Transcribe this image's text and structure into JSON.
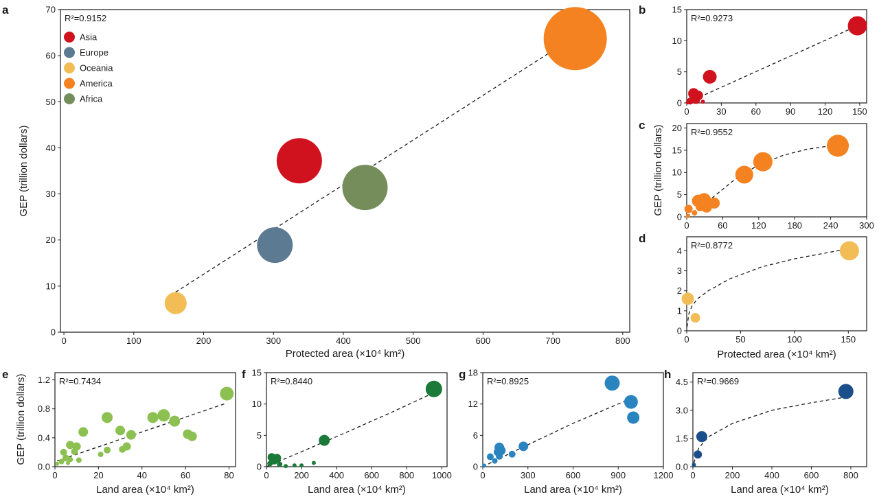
{
  "chart_data": [
    {
      "id": "a",
      "panel_label": "a",
      "type": "scatter",
      "r2": "R²=0.9152",
      "xlabel": "Protected area (×10⁴ km²)",
      "ylabel": "GEP (trillion dollars)",
      "xlim": [
        -5,
        810
      ],
      "ylim": [
        0,
        70
      ],
      "xticks": [
        0,
        100,
        200,
        300,
        400,
        500,
        600,
        700,
        800
      ],
      "yticks": [
        0,
        10,
        20,
        30,
        40,
        50,
        60,
        70
      ],
      "legend": [
        {
          "label": "Asia",
          "color": "#d0121f"
        },
        {
          "label": "Europe",
          "color": "#5c7a92"
        },
        {
          "label": "Oceania",
          "color": "#f2bd55"
        },
        {
          "label": "America",
          "color": "#f58220"
        },
        {
          "label": "Africa",
          "color": "#758d5b"
        }
      ],
      "points": [
        {
          "name": "Asia",
          "x": 337,
          "y": 37.2,
          "size": 33,
          "color": "#d0121f"
        },
        {
          "name": "Europe",
          "x": 302,
          "y": 18.9,
          "size": 26,
          "color": "#5c7a92"
        },
        {
          "name": "Oceania",
          "x": 160,
          "y": 6.3,
          "size": 16,
          "color": "#f2bd55"
        },
        {
          "name": "America",
          "x": 732,
          "y": 63.7,
          "size": 46,
          "color": "#f58220"
        },
        {
          "name": "Africa",
          "x": 431,
          "y": 31.4,
          "size": 33,
          "color": "#758d5b"
        }
      ],
      "fit": [
        [
          160,
          8.7
        ],
        [
          732,
          64.2
        ]
      ]
    },
    {
      "id": "b",
      "panel_label": "b",
      "type": "scatter",
      "r2": "R²=0.9273",
      "xlim": [
        0,
        156
      ],
      "ylim": [
        0,
        15
      ],
      "xticks": [
        0,
        30,
        60,
        90,
        120,
        150
      ],
      "yticks": [
        0,
        5,
        10,
        15
      ],
      "points": [
        {
          "x": 148,
          "y": 12.4,
          "size": 14,
          "color": "#d0121f"
        },
        {
          "x": 20,
          "y": 4.2,
          "size": 10,
          "color": "#d0121f"
        },
        {
          "x": 6,
          "y": 1.5,
          "size": 8,
          "color": "#d0121f"
        },
        {
          "x": 10,
          "y": 1.2,
          "size": 7,
          "color": "#d0121f"
        },
        {
          "x": 3,
          "y": 0.3,
          "size": 5,
          "color": "#d0121f"
        },
        {
          "x": 8,
          "y": 0.5,
          "size": 6,
          "color": "#d0121f"
        },
        {
          "x": 14,
          "y": 0.2,
          "size": 3,
          "color": "#d0121f"
        },
        {
          "x": 1,
          "y": 0.1,
          "size": 3,
          "color": "#d0121f"
        }
      ],
      "fit": [
        [
          1,
          0.1
        ],
        [
          148,
          12.4
        ]
      ]
    },
    {
      "id": "c",
      "panel_label": "c",
      "type": "scatter",
      "r2": "R²=0.9552",
      "ylabel": "GEP (trillion dollars)",
      "xlim": [
        0,
        300
      ],
      "ylim": [
        0,
        21
      ],
      "xticks": [
        0,
        60,
        120,
        180,
        240,
        300
      ],
      "yticks": [
        0,
        5,
        10,
        15,
        20
      ],
      "points": [
        {
          "x": 252,
          "y": 16,
          "size": 16,
          "color": "#f58220"
        },
        {
          "x": 127,
          "y": 12.4,
          "size": 14,
          "color": "#f58220"
        },
        {
          "x": 96,
          "y": 9.5,
          "size": 13,
          "color": "#f58220"
        },
        {
          "x": 46,
          "y": 3.1,
          "size": 8,
          "color": "#f58220"
        },
        {
          "x": 29,
          "y": 3.8,
          "size": 10,
          "color": "#f58220"
        },
        {
          "x": 19,
          "y": 3.6,
          "size": 9,
          "color": "#f58220"
        },
        {
          "x": 33,
          "y": 2.2,
          "size": 8,
          "color": "#f58220"
        },
        {
          "x": 22,
          "y": 2.2,
          "size": 6,
          "color": "#f58220"
        },
        {
          "x": 3,
          "y": 1.8,
          "size": 6,
          "color": "#f58220"
        },
        {
          "x": 13,
          "y": 0.9,
          "size": 4,
          "color": "#f58220"
        },
        {
          "x": 2,
          "y": 0.2,
          "size": 3,
          "color": "#f58220"
        }
      ],
      "fit": [
        [
          0,
          0.2
        ],
        [
          40,
          4
        ],
        [
          80,
          8.4
        ],
        [
          120,
          11.7
        ],
        [
          160,
          13.8
        ],
        [
          200,
          15.2
        ],
        [
          250,
          16.2
        ]
      ]
    },
    {
      "id": "d",
      "panel_label": "d",
      "type": "scatter",
      "r2": "R²=0.8772",
      "xlabel": "Protected area (×10⁴ km²)",
      "xlim": [
        0,
        167
      ],
      "ylim": [
        0,
        4.7
      ],
      "xticks": [
        0,
        50,
        100,
        150
      ],
      "yticks": [
        0,
        1,
        2,
        3,
        4
      ],
      "points": [
        {
          "x": 151,
          "y": 4.0,
          "size": 14,
          "color": "#f2bd55"
        },
        {
          "x": 1,
          "y": 1.6,
          "size": 9,
          "color": "#f2bd55"
        },
        {
          "x": 8,
          "y": 0.65,
          "size": 7,
          "color": "#f2bd55"
        }
      ],
      "fit": [
        [
          0.3,
          0.2
        ],
        [
          2,
          0.85
        ],
        [
          5,
          1.25
        ],
        [
          10,
          1.6
        ],
        [
          20,
          2.0
        ],
        [
          40,
          2.6
        ],
        [
          70,
          3.2
        ],
        [
          100,
          3.6
        ],
        [
          150,
          4.1
        ]
      ]
    },
    {
      "id": "e",
      "panel_label": "e",
      "type": "scatter",
      "r2": "R²=0.7434",
      "xlabel": "Land area (×10⁴ km²)",
      "ylabel": "GEP (trillion dollars)",
      "xlim": [
        0,
        83
      ],
      "ylim": [
        0,
        1.3
      ],
      "xticks": [
        0,
        20,
        40,
        60,
        80
      ],
      "yticks": [
        "0.0",
        "0.4",
        "0.8",
        "1.2"
      ],
      "points": [
        {
          "x": 79,
          "y": 1.01,
          "size": 10,
          "color": "#8cc152"
        },
        {
          "x": 50,
          "y": 0.71,
          "size": 9,
          "color": "#8cc152"
        },
        {
          "x": 45,
          "y": 0.68,
          "size": 8,
          "color": "#8cc152"
        },
        {
          "x": 24,
          "y": 0.68,
          "size": 8,
          "color": "#8cc152"
        },
        {
          "x": 55,
          "y": 0.63,
          "size": 8,
          "color": "#8cc152"
        },
        {
          "x": 13,
          "y": 0.48,
          "size": 7,
          "color": "#8cc152"
        },
        {
          "x": 30,
          "y": 0.5,
          "size": 7,
          "color": "#8cc152"
        },
        {
          "x": 61,
          "y": 0.45,
          "size": 7,
          "color": "#8cc152"
        },
        {
          "x": 63,
          "y": 0.42,
          "size": 7,
          "color": "#8cc152"
        },
        {
          "x": 35,
          "y": 0.44,
          "size": 7,
          "color": "#8cc152"
        },
        {
          "x": 7,
          "y": 0.3,
          "size": 6,
          "color": "#8cc152"
        },
        {
          "x": 10,
          "y": 0.28,
          "size": 6,
          "color": "#8cc152"
        },
        {
          "x": 33,
          "y": 0.28,
          "size": 6,
          "color": "#8cc152"
        },
        {
          "x": 24,
          "y": 0.23,
          "size": 5,
          "color": "#8cc152"
        },
        {
          "x": 31,
          "y": 0.24,
          "size": 5,
          "color": "#8cc152"
        },
        {
          "x": 4,
          "y": 0.2,
          "size": 5,
          "color": "#8cc152"
        },
        {
          "x": 9,
          "y": 0.21,
          "size": 5,
          "color": "#8cc152"
        },
        {
          "x": 21,
          "y": 0.17,
          "size": 4,
          "color": "#8cc152"
        },
        {
          "x": 5,
          "y": 0.12,
          "size": 5,
          "color": "#8cc152"
        },
        {
          "x": 7,
          "y": 0.1,
          "size": 4,
          "color": "#8cc152"
        },
        {
          "x": 11,
          "y": 0.09,
          "size": 4,
          "color": "#8cc152"
        },
        {
          "x": 3,
          "y": 0.07,
          "size": 4,
          "color": "#8cc152"
        },
        {
          "x": 6,
          "y": 0.05,
          "size": 3,
          "color": "#8cc152"
        },
        {
          "x": 1,
          "y": 0.04,
          "size": 3,
          "color": "#8cc152"
        }
      ],
      "fit": [
        [
          1,
          0.08
        ],
        [
          79,
          0.88
        ]
      ]
    },
    {
      "id": "f",
      "panel_label": "f",
      "type": "scatter",
      "r2": "R²=0.8440",
      "xlabel": "Land area (×10⁴ km²)",
      "xlim": [
        0,
        1030
      ],
      "ylim": [
        0,
        15
      ],
      "xticks": [
        0,
        200,
        400,
        600,
        800,
        1000
      ],
      "yticks": [
        0,
        5,
        10,
        15
      ],
      "points": [
        {
          "x": 955,
          "y": 12.4,
          "size": 12,
          "color": "#1b7a3a"
        },
        {
          "x": 330,
          "y": 4.2,
          "size": 8,
          "color": "#1b7a3a"
        },
        {
          "x": 60,
          "y": 1.4,
          "size": 6,
          "color": "#1b7a3a"
        },
        {
          "x": 30,
          "y": 1.5,
          "size": 6,
          "color": "#1b7a3a"
        },
        {
          "x": 45,
          "y": 0.9,
          "size": 5,
          "color": "#1b7a3a"
        },
        {
          "x": 20,
          "y": 0.5,
          "size": 4,
          "color": "#1b7a3a"
        },
        {
          "x": 75,
          "y": 0.4,
          "size": 4,
          "color": "#1b7a3a"
        },
        {
          "x": 270,
          "y": 0.6,
          "size": 3,
          "color": "#1b7a3a"
        },
        {
          "x": 160,
          "y": 0.2,
          "size": 3,
          "color": "#1b7a3a"
        },
        {
          "x": 200,
          "y": 0.2,
          "size": 3,
          "color": "#1b7a3a"
        },
        {
          "x": 110,
          "y": 0.1,
          "size": 3,
          "color": "#1b7a3a"
        }
      ],
      "fit": [
        [
          0,
          0
        ],
        [
          200,
          2.4
        ],
        [
          400,
          4.8
        ],
        [
          700,
          8.5
        ],
        [
          955,
          11.8
        ]
      ]
    },
    {
      "id": "g",
      "panel_label": "g",
      "type": "scatter",
      "r2": "R²=0.8925",
      "xlabel": "Land area (×10⁴ km²)",
      "xlim": [
        0,
        1200
      ],
      "ylim": [
        0,
        18
      ],
      "xticks": [
        0,
        300,
        600,
        900,
        1200
      ],
      "yticks": [
        0,
        6,
        12,
        18
      ],
      "points": [
        {
          "x": 860,
          "y": 16,
          "size": 11,
          "color": "#2a84bf"
        },
        {
          "x": 985,
          "y": 12.4,
          "size": 10,
          "color": "#2a84bf"
        },
        {
          "x": 1000,
          "y": 9.4,
          "size": 9,
          "color": "#2a84bf"
        },
        {
          "x": 270,
          "y": 3.9,
          "size": 7,
          "color": "#2a84bf"
        },
        {
          "x": 110,
          "y": 3.7,
          "size": 7,
          "color": "#2a84bf"
        },
        {
          "x": 120,
          "y": 3.1,
          "size": 7,
          "color": "#2a84bf"
        },
        {
          "x": 100,
          "y": 2.8,
          "size": 6,
          "color": "#2a84bf"
        },
        {
          "x": 195,
          "y": 2.4,
          "size": 5,
          "color": "#2a84bf"
        },
        {
          "x": 50,
          "y": 1.9,
          "size": 5,
          "color": "#2a84bf"
        },
        {
          "x": 110,
          "y": 2.0,
          "size": 5,
          "color": "#2a84bf"
        },
        {
          "x": 80,
          "y": 1.1,
          "size": 4,
          "color": "#2a84bf"
        },
        {
          "x": 10,
          "y": 0.2,
          "size": 3,
          "color": "#2a84bf"
        }
      ],
      "fit": [
        [
          0,
          0
        ],
        [
          300,
          4.2
        ],
        [
          600,
          8.3
        ],
        [
          980,
          13
        ]
      ]
    },
    {
      "id": "h",
      "panel_label": "h",
      "type": "scatter",
      "r2": "R²=0.9669",
      "xlabel": "Land area (×10⁴ km²)",
      "xlim": [
        0,
        880
      ],
      "ylim": [
        0,
        5
      ],
      "xticks": [
        0,
        200,
        400,
        600,
        800
      ],
      "yticks": [
        "0.0",
        "1.5",
        "3.0",
        "4.5"
      ],
      "points": [
        {
          "x": 775,
          "y": 4.0,
          "size": 11,
          "color": "#1a4f8b"
        },
        {
          "x": 45,
          "y": 1.6,
          "size": 8,
          "color": "#1a4f8b"
        },
        {
          "x": 25,
          "y": 0.65,
          "size": 6,
          "color": "#1a4f8b"
        },
        {
          "x": 5,
          "y": 0.1,
          "size": 3,
          "color": "#1a4f8b"
        }
      ],
      "fit": [
        [
          5,
          0.2
        ],
        [
          30,
          1.0
        ],
        [
          80,
          1.6
        ],
        [
          200,
          2.3
        ],
        [
          400,
          3.0
        ],
        [
          600,
          3.4
        ],
        [
          775,
          3.7
        ]
      ]
    }
  ]
}
